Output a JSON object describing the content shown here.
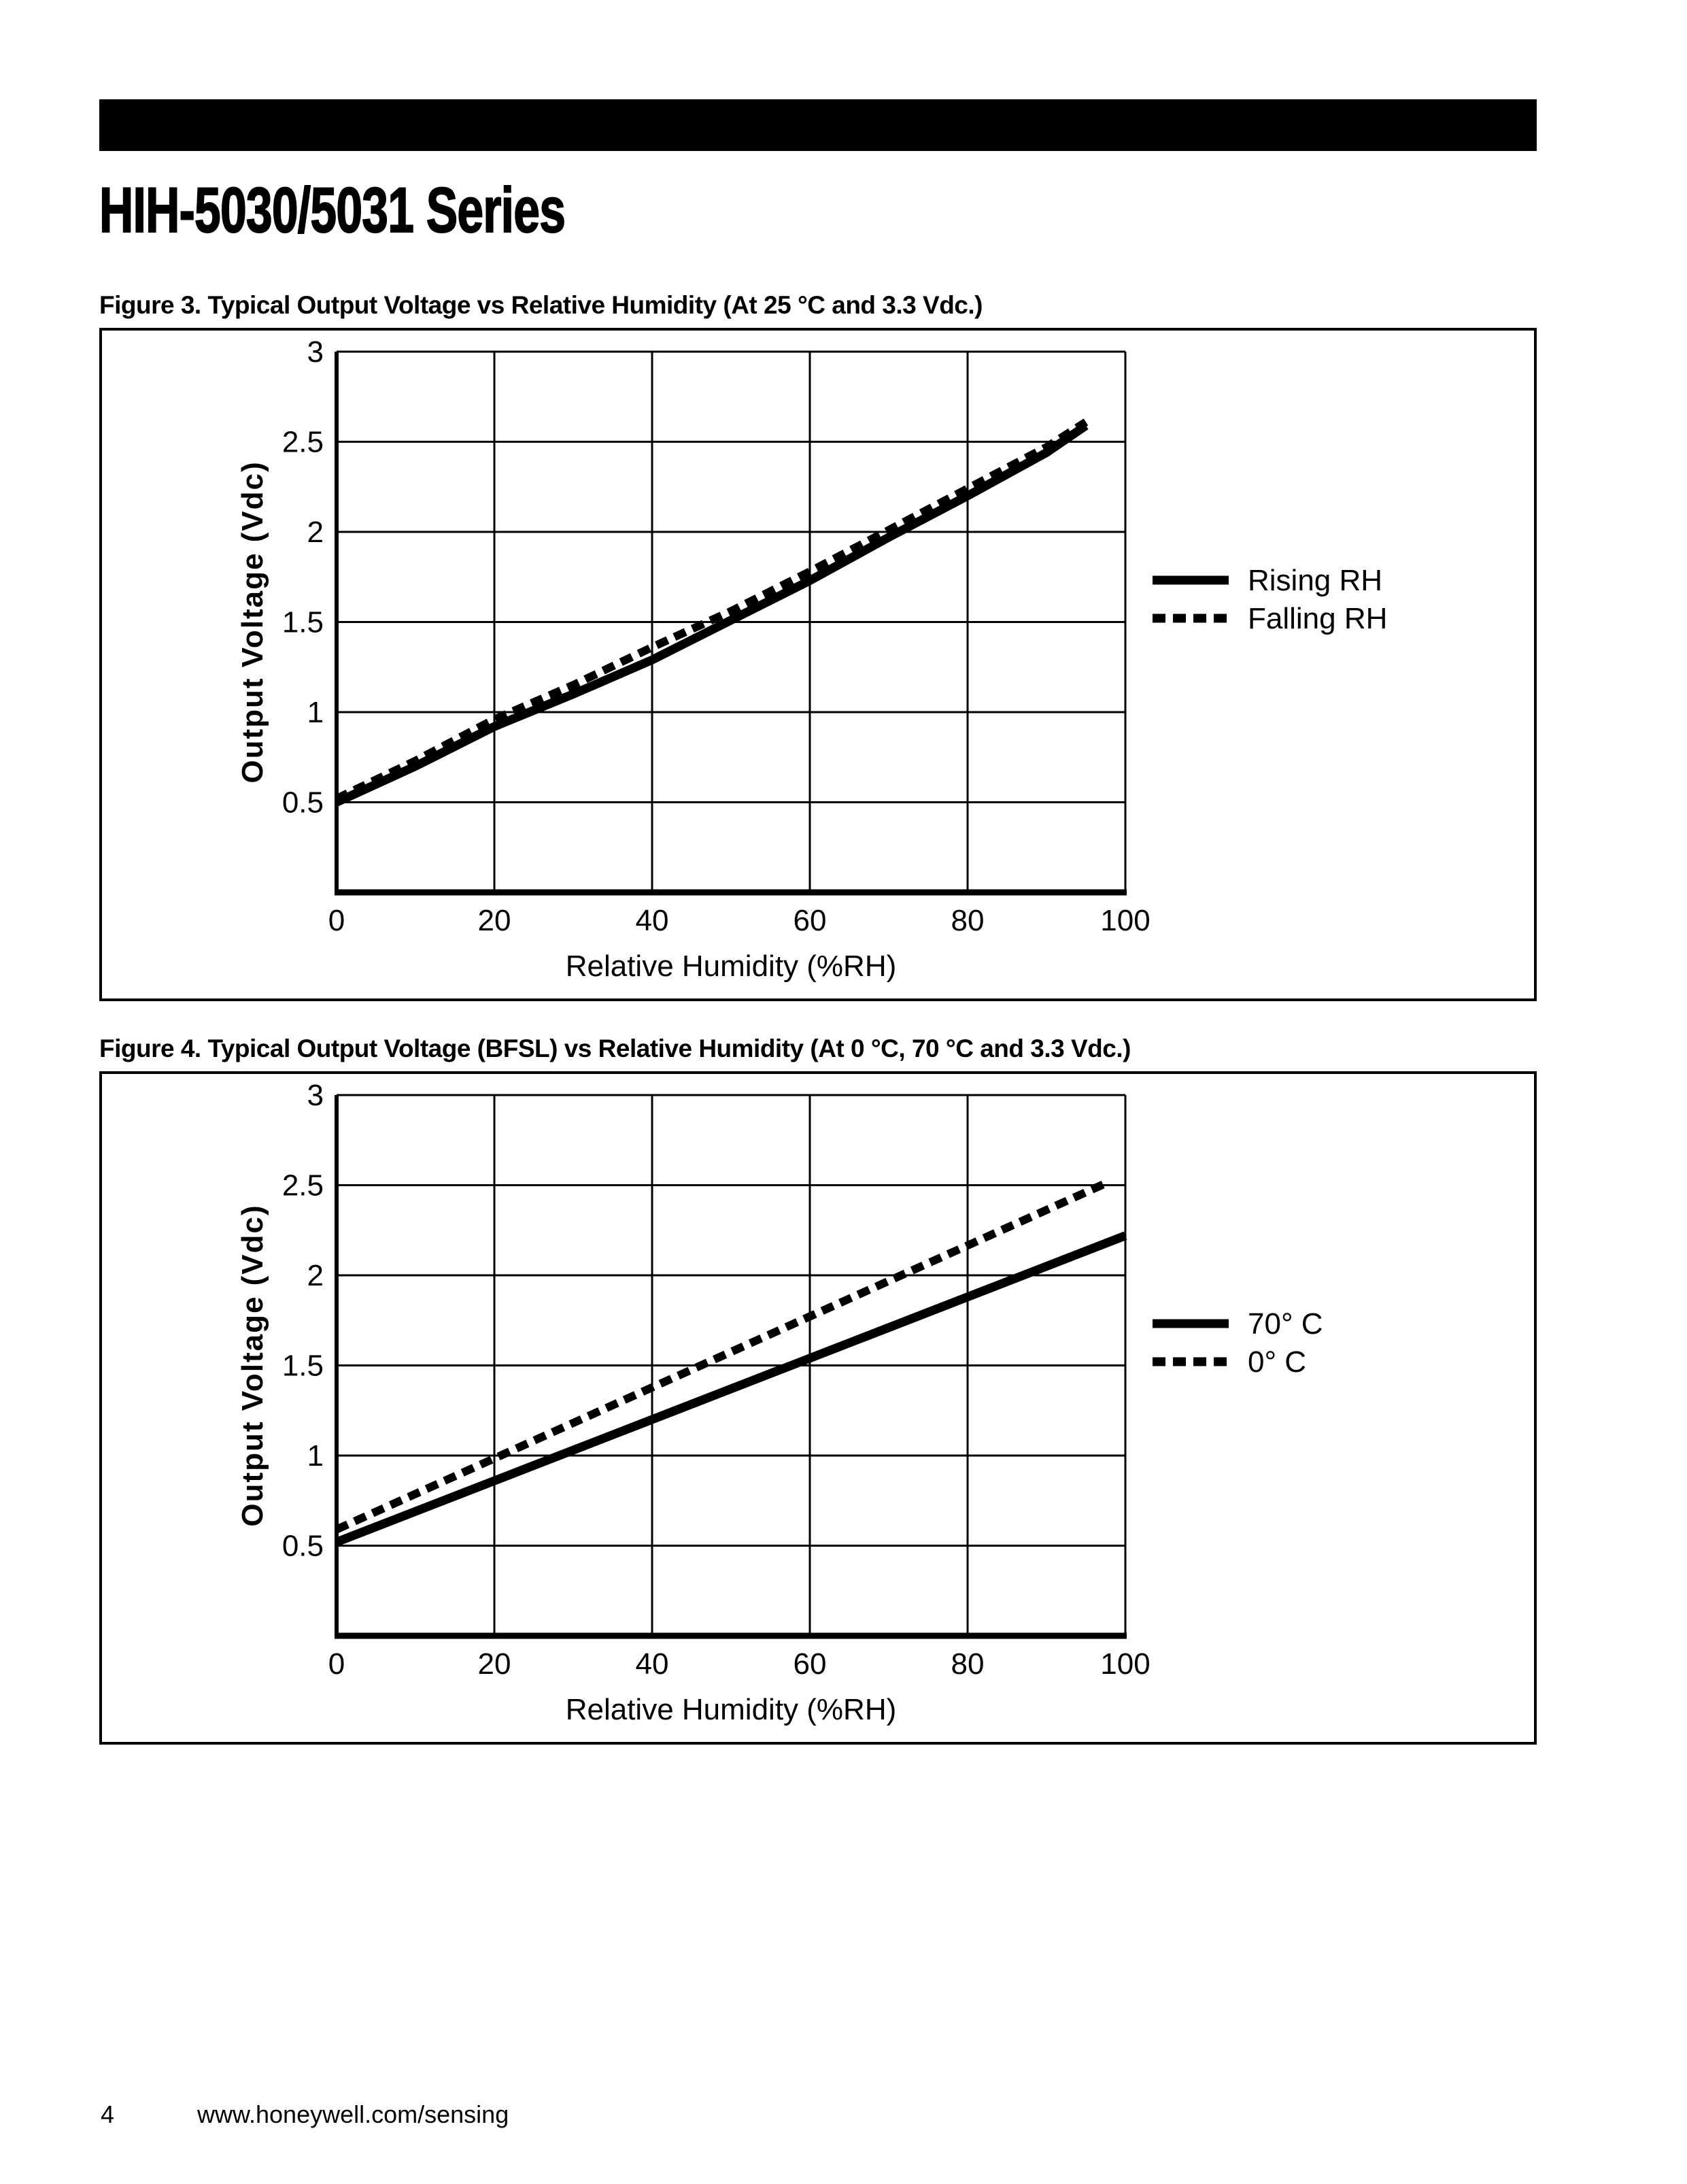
{
  "title": "HIH-5030/5031 Series",
  "header_bar": {
    "color": "#000000"
  },
  "figures": [
    {
      "caption": "Figure 3. Typical Output Voltage vs Relative Humidity (At 25 °C and 3.3 Vdc.)"
    },
    {
      "caption": "Figure 4. Typical Output Voltage (BFSL) vs Relative Humidity (At 0 °C, 70 °C and 3.3 Vdc.)"
    }
  ],
  "chart_data": [
    {
      "type": "line",
      "title": "Typical Output Voltage vs Relative Humidity (At 25 °C and 3.3 Vdc.)",
      "xlabel": "Relative Humidity (%RH)",
      "ylabel": "Output Voltage (Vdc)",
      "xlim": [
        0,
        100
      ],
      "ylim": [
        0,
        3
      ],
      "xticks": [
        0,
        20,
        40,
        60,
        80,
        100
      ],
      "yticks": [
        0.5,
        1,
        1.5,
        2,
        2.5,
        3
      ],
      "grid": true,
      "legend_position": "right",
      "series": [
        {
          "name": "Rising RH",
          "style": "solid",
          "points": [
            [
              0,
              0.5
            ],
            [
              10,
              0.7
            ],
            [
              20,
              0.92
            ],
            [
              30,
              1.1
            ],
            [
              40,
              1.29
            ],
            [
              50,
              1.51
            ],
            [
              60,
              1.73
            ],
            [
              70,
              1.97
            ],
            [
              80,
              2.2
            ],
            [
              90,
              2.44
            ],
            [
              95,
              2.59
            ]
          ]
        },
        {
          "name": "Falling RH",
          "style": "dashed",
          "points": [
            [
              0,
              0.52
            ],
            [
              10,
              0.73
            ],
            [
              20,
              0.96
            ],
            [
              30,
              1.15
            ],
            [
              40,
              1.36
            ],
            [
              50,
              1.56
            ],
            [
              60,
              1.78
            ],
            [
              70,
              2.01
            ],
            [
              80,
              2.24
            ],
            [
              90,
              2.47
            ],
            [
              95,
              2.61
            ]
          ]
        }
      ]
    },
    {
      "type": "line",
      "title": "Typical Output Voltage (BFSL) vs Relative Humidity (At 0 °C, 70 °C and 3.3 Vdc.)",
      "xlabel": "Relative Humidity (%RH)",
      "ylabel": "Output Voltage (Vdc)",
      "xlim": [
        0,
        100
      ],
      "ylim": [
        0,
        3
      ],
      "xticks": [
        0,
        20,
        40,
        60,
        80,
        100
      ],
      "yticks": [
        0.5,
        1,
        1.5,
        2,
        2.5,
        3
      ],
      "grid": true,
      "legend_position": "right",
      "series": [
        {
          "name": "70° C",
          "style": "solid",
          "points": [
            [
              0,
              0.52
            ],
            [
              100,
              2.22
            ]
          ]
        },
        {
          "name": "0° C",
          "style": "dashed",
          "points": [
            [
              0,
              0.59
            ],
            [
              98,
              2.52
            ]
          ]
        }
      ]
    }
  ],
  "footer": {
    "page_number": "4",
    "url": "www.honeywell.com/sensing"
  }
}
